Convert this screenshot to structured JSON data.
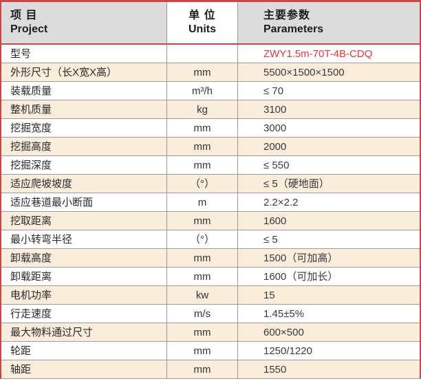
{
  "table": {
    "header": {
      "project_zh": "项 目",
      "project_en": "Project",
      "units_zh": "单 位",
      "units_en": "Units",
      "parameters_zh": "主要参数",
      "parameters_en": "Parameters"
    },
    "rows": [
      {
        "label": "型号",
        "unit": "",
        "value": "ZWY1.5m-70T-4B-CDQ"
      },
      {
        "label": "外形尺寸（长X宽X高）",
        "unit": "mm",
        "value": "5500×1500×1500"
      },
      {
        "label": "装载质量",
        "unit": "m³/h",
        "value": "≤ 70"
      },
      {
        "label": "整机质量",
        "unit": "kg",
        "value": "3100"
      },
      {
        "label": "挖掘宽度",
        "unit": "mm",
        "value": "3000"
      },
      {
        "label": "挖掘高度",
        "unit": "mm",
        "value": "2000"
      },
      {
        "label": "挖掘深度",
        "unit": "mm",
        "value": "≤ 550"
      },
      {
        "label": "适应爬坡坡度",
        "unit": "（°）",
        "value": "≤ 5（硬地面）"
      },
      {
        "label": "适应巷道最小断面",
        "unit": "m",
        "value": "2.2×2.2"
      },
      {
        "label": "挖取距离",
        "unit": "mm",
        "value": "1600"
      },
      {
        "label": "最小转弯半径",
        "unit": "（°）",
        "value": "≤ 5"
      },
      {
        "label": "卸载高度",
        "unit": "mm",
        "value": "1500（可加高）"
      },
      {
        "label": "卸载距离",
        "unit": "mm",
        "value": "1600（可加长）"
      },
      {
        "label": "电机功率",
        "unit": "kw",
        "value": "15"
      },
      {
        "label": "行走速度",
        "unit": "m/s",
        "value": "1.45±5%"
      },
      {
        "label": "最大物料通过尺寸",
        "unit": "mm",
        "value": "600×500"
      },
      {
        "label": "轮距",
        "unit": "mm",
        "value": "1250/1220"
      },
      {
        "label": "轴距",
        "unit": "mm",
        "value": "1550"
      }
    ]
  },
  "colors": {
    "border_red": "#c5494b",
    "model_text_red": "#e03a3a",
    "header_bg": "#dcdcdc",
    "row_alt_bg": "#faeddc",
    "grid_line": "#999999",
    "text": "#333333"
  }
}
